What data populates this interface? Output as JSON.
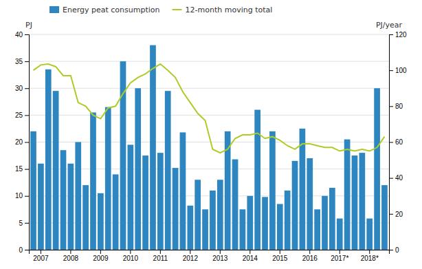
{
  "chart_data": {
    "type": "bar",
    "ylabel": "PJ",
    "y2label": "PJ/year",
    "categories": [
      null,
      "2007",
      null,
      null,
      null,
      "2008",
      null,
      null,
      null,
      "2009",
      null,
      null,
      null,
      "2010",
      null,
      null,
      null,
      "2011",
      null,
      null,
      null,
      "2012",
      null,
      null,
      null,
      "2013",
      null,
      null,
      null,
      "2014",
      null,
      null,
      null,
      "2015",
      null,
      null,
      null,
      "2016",
      null,
      null,
      null,
      "2017*",
      null,
      null,
      null,
      "2018*",
      null,
      null
    ],
    "series": [
      {
        "name": "Energy peat consumption",
        "type": "bar",
        "color": "#2E86C1",
        "values": [
          22.0,
          16.0,
          33.5,
          29.5,
          18.5,
          16.0,
          20.0,
          12.0,
          25.5,
          10.5,
          26.5,
          14.0,
          35.0,
          19.5,
          30.0,
          17.5,
          38.0,
          18.0,
          29.5,
          15.2,
          21.8,
          8.2,
          13.0,
          7.5,
          11.0,
          13.0,
          22.0,
          16.8,
          7.5,
          10.0,
          26.0,
          9.8,
          22.0,
          8.5,
          11.0,
          16.5,
          22.5,
          17.0,
          7.5,
          10.0,
          11.5,
          5.8,
          20.5,
          17.5,
          18.0,
          5.8,
          30.0,
          12.0
        ]
      },
      {
        "name": "12-month moving total",
        "type": "line",
        "color": "#ADCC29",
        "axis": "y2",
        "values": [
          100.0,
          103.0,
          103.5,
          102.0,
          97.0,
          97.0,
          82.0,
          80.0,
          75.0,
          73.0,
          79.0,
          80.0,
          87.0,
          93.0,
          96.0,
          98.0,
          101.0,
          103.5,
          100.0,
          96.0,
          88.0,
          82.0,
          76.0,
          72.0,
          56.0,
          54.0,
          56.0,
          62.0,
          64.0,
          64.0,
          65.0,
          62.0,
          63.0,
          61.0,
          58.0,
          56.0,
          59.0,
          59.0,
          58.0,
          57.0,
          57.0,
          55.0,
          56.0,
          55.0,
          56.0,
          55.0,
          57.0,
          63.0
        ]
      }
    ],
    "ylim": [
      0,
      40
    ],
    "yticks": [
      0,
      5,
      10,
      15,
      20,
      25,
      30,
      35,
      40
    ],
    "y2lim": [
      0,
      120
    ],
    "y2ticks": [
      0,
      20,
      40,
      60,
      80,
      100,
      120
    ],
    "grid": true,
    "legend": "upper left"
  }
}
